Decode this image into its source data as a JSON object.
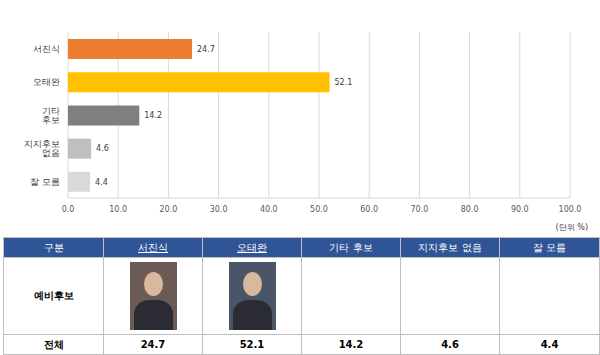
{
  "chart_data": {
    "type": "bar",
    "orientation": "horizontal",
    "categories": [
      "서진식",
      "오태완",
      "기타 후보",
      "지지후보 없음",
      "잘 모름"
    ],
    "values": [
      24.7,
      52.1,
      14.2,
      4.6,
      4.4
    ],
    "colors": [
      "#ED7D31",
      "#FFC000",
      "#7F7F7F",
      "#BFBFBF",
      "#D9D9D9"
    ],
    "xlim": [
      0,
      100
    ],
    "xticks": [
      {
        "value": 0,
        "label": "0.0"
      },
      {
        "value": 10,
        "label": "10.0"
      },
      {
        "value": 20,
        "label": "20.0"
      },
      {
        "value": 30,
        "label": "30.0"
      },
      {
        "value": 40,
        "label": "40.0"
      },
      {
        "value": 50,
        "label": "50.0"
      },
      {
        "value": 60,
        "label": "60.0"
      },
      {
        "value": 70,
        "label": "70.0"
      },
      {
        "value": 80,
        "label": "80.0"
      },
      {
        "value": 90,
        "label": "90.0"
      },
      {
        "value": 100,
        "label": "100.0"
      }
    ],
    "xlabel": "(단위 %)",
    "grid": true,
    "data_labels": true
  },
  "table": {
    "header": [
      "구분",
      "서진식",
      "오태완",
      "기타 후보",
      "지지후보 없음",
      "잘 모름"
    ],
    "rows": [
      [
        "예비후보"
      ],
      [
        "전체",
        24.7,
        52.1,
        14.2,
        4.6,
        4.4
      ]
    ]
  }
}
